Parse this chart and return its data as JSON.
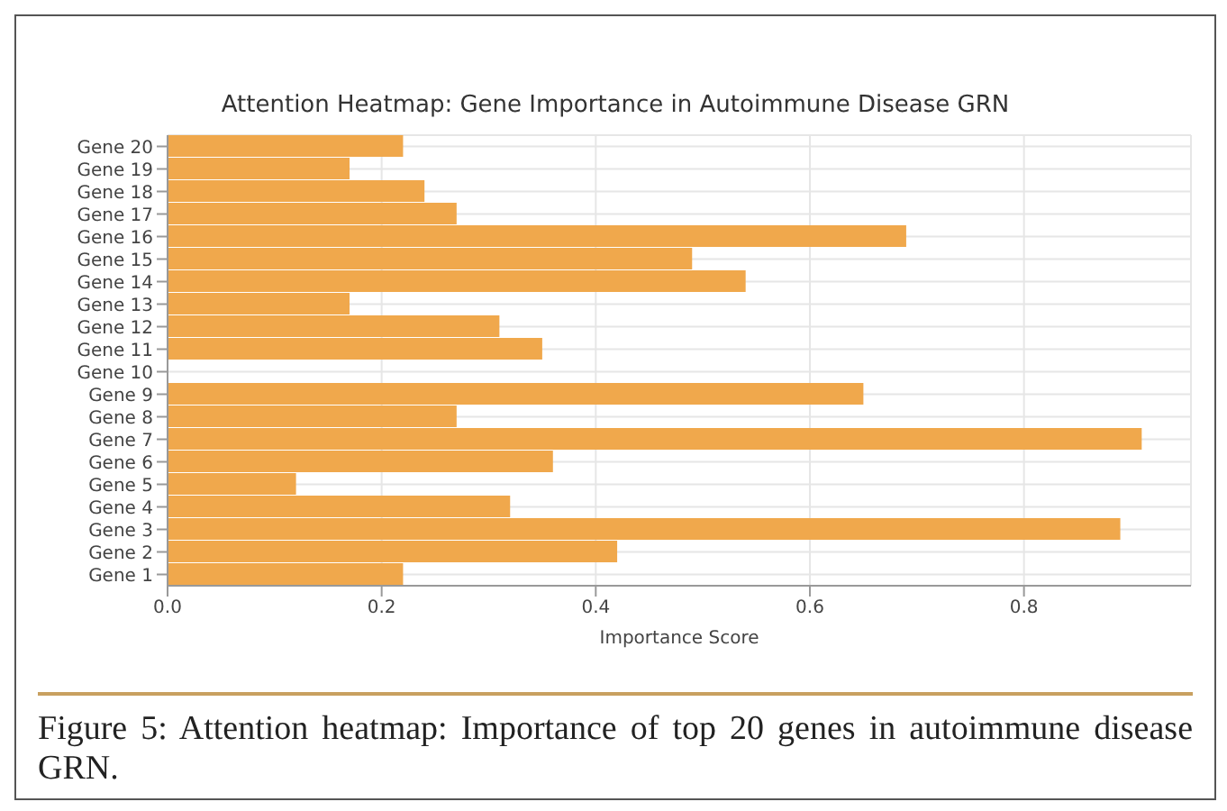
{
  "chart_data": {
    "type": "bar",
    "orientation": "horizontal",
    "title": "Attention Heatmap: Gene Importance in Autoimmune Disease GRN",
    "xlabel": "Importance Score",
    "categories": [
      "Gene 20",
      "Gene 19",
      "Gene 18",
      "Gene 17",
      "Gene 16",
      "Gene 15",
      "Gene 14",
      "Gene 13",
      "Gene 12",
      "Gene 11",
      "Gene 10",
      "Gene 9",
      "Gene 8",
      "Gene 7",
      "Gene 6",
      "Gene 5",
      "Gene 4",
      "Gene 3",
      "Gene 2",
      "Gene 1"
    ],
    "values": [
      0.22,
      0.17,
      0.24,
      0.27,
      0.69,
      0.49,
      0.54,
      0.17,
      0.31,
      0.35,
      0,
      0.65,
      0.27,
      0.91,
      0.36,
      0.12,
      0.32,
      0.89,
      0.42,
      0.22
    ],
    "color": "#f0a84c",
    "xlim": [
      0,
      0.956
    ],
    "xticks": [
      {
        "value": 0,
        "label": "0.0"
      },
      0.2,
      0.4,
      0.6,
      0.8
    ],
    "grid": true,
    "annotations": [
      "Figure 5: Attention heatmap: Importance of top 20 genes in autoimmune disease GRN."
    ]
  }
}
